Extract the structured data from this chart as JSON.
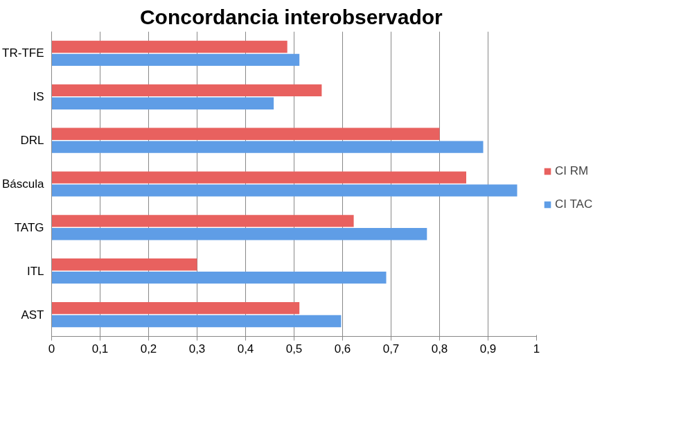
{
  "chart_data": {
    "type": "bar",
    "orientation": "horizontal",
    "title": "Concordancia  interobservador",
    "categories": [
      "TR-TFE",
      "IS",
      "DRL",
      "Báscula",
      "TATG",
      "ITL",
      "AST"
    ],
    "series": [
      {
        "name": "CI RM",
        "color": "#e8615f",
        "values": [
          0.486,
          0.557,
          0.8,
          0.855,
          0.623,
          0.3,
          0.511
        ]
      },
      {
        "name": "CI TAC",
        "color": "#5f9de6",
        "values": [
          0.511,
          0.458,
          0.89,
          0.96,
          0.774,
          0.69,
          0.597
        ]
      }
    ],
    "xlim": [
      0,
      1
    ],
    "xticks": [
      {
        "value": 0,
        "label": "0"
      },
      {
        "value": 0.1,
        "label": "0,1"
      },
      {
        "value": 0.2,
        "label": "0,2"
      },
      {
        "value": 0.3,
        "label": "0,3"
      },
      {
        "value": 0.4,
        "label": "0,4"
      },
      {
        "value": 0.5,
        "label": "0,5"
      },
      {
        "value": 0.6,
        "label": "0,6"
      },
      {
        "value": 0.7,
        "label": "0,7"
      },
      {
        "value": 0.8,
        "label": "0,8"
      },
      {
        "value": 0.9,
        "label": "0,9"
      },
      {
        "value": 1,
        "label": "1"
      }
    ],
    "grid": "x",
    "legend": "right"
  }
}
